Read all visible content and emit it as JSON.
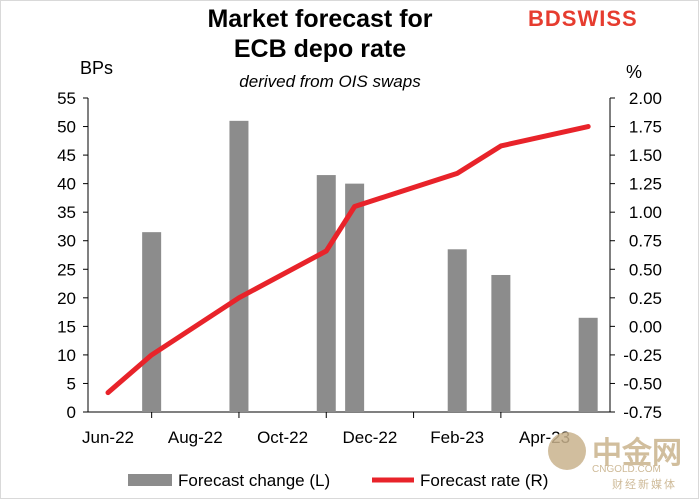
{
  "brand": {
    "logo_text": "BDSWISS"
  },
  "watermark": {
    "main": "中金网",
    "domain": "CNGOLD.COM",
    "tagline": "财经新媒体"
  },
  "chart_data": {
    "type": "bar+line",
    "title_line1": "Market forecast for",
    "title_line2": "ECB depo  rate",
    "subtitle": "derived from OIS swaps",
    "left_axis_unit": "BPs",
    "right_axis_unit": "%",
    "left_axis": {
      "min": 0,
      "max": 55,
      "step": 5,
      "ticks": [
        "0",
        "5",
        "10",
        "15",
        "20",
        "25",
        "30",
        "35",
        "40",
        "45",
        "50",
        "55"
      ]
    },
    "right_axis": {
      "min": -0.75,
      "max": 2.0,
      "step": 0.25,
      "ticks": [
        "-0.75",
        "-0.50",
        "-0.25",
        "0.00",
        "0.25",
        "0.50",
        "0.75",
        "1.00",
        "1.25",
        "1.50",
        "1.75",
        "2.00"
      ]
    },
    "x_axis": {
      "labels": [
        "Jun-22",
        "Aug-22",
        "Oct-22",
        "Dec-22",
        "Feb-23",
        "Apr-23"
      ],
      "label_positions": [
        0,
        2,
        4,
        6,
        8,
        10
      ],
      "min": 0,
      "max": 11.5
    },
    "series": [
      {
        "name": "Forecast change (L)",
        "type": "bar",
        "color": "#8c8c8c",
        "points": [
          {
            "x": 1,
            "y": 31.5
          },
          {
            "x": 3,
            "y": 51
          },
          {
            "x": 5,
            "y": 41.5
          },
          {
            "x": 5.65,
            "y": 40
          },
          {
            "x": 8,
            "y": 28.5
          },
          {
            "x": 9,
            "y": 24
          },
          {
            "x": 11,
            "y": 16.5
          }
        ]
      },
      {
        "name": "Forecast rate (R)",
        "type": "line",
        "color": "#e8232a",
        "points": [
          {
            "x": 0,
            "y": -0.58
          },
          {
            "x": 1,
            "y": -0.25
          },
          {
            "x": 3,
            "y": 0.25
          },
          {
            "x": 5,
            "y": 0.66
          },
          {
            "x": 5.65,
            "y": 1.05
          },
          {
            "x": 8,
            "y": 1.34
          },
          {
            "x": 9,
            "y": 1.58
          },
          {
            "x": 11,
            "y": 1.75
          }
        ]
      }
    ],
    "legend_position": "bottom",
    "grid": false
  }
}
